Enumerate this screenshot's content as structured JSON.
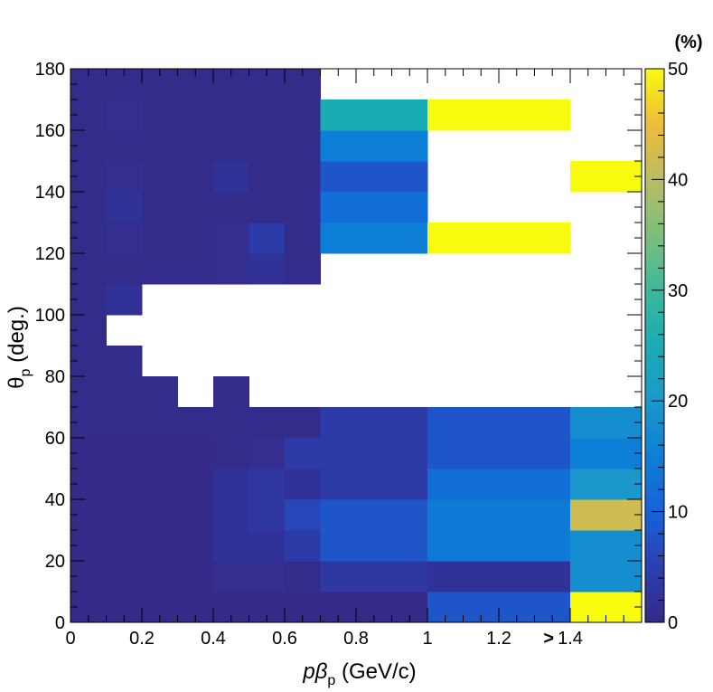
{
  "chart_data": {
    "type": "heatmap",
    "xlabel": {
      "main": "pβ",
      "sub": "p",
      "unit": " (GeV/c)"
    },
    "ylabel": {
      "main": "θ",
      "sub": "p",
      "unit": " (deg.)"
    },
    "zlabel": "(%)",
    "xlim": [
      0,
      1.6
    ],
    "ylim": [
      0,
      180
    ],
    "zlim": [
      0,
      50
    ],
    "x_ticks": [
      "0",
      "0.2",
      "0.4",
      "0.6",
      "0.8",
      "1",
      "1.2",
      "1.4"
    ],
    "x_overflow_marker": ">",
    "y_ticks": [
      "0",
      "20",
      "40",
      "60",
      "80",
      "100",
      "120",
      "140",
      "160",
      "180"
    ],
    "z_ticks": [
      "0",
      "10",
      "20",
      "30",
      "40",
      "50"
    ],
    "x_bin_edges": [
      0,
      0.1,
      0.2,
      0.3,
      0.4,
      0.5,
      0.6,
      0.7,
      1.0,
      1.4,
      1.6
    ],
    "y_bin_edges": [
      0,
      10,
      20,
      30,
      40,
      50,
      60,
      70,
      80,
      90,
      100,
      110,
      120,
      130,
      140,
      150,
      160,
      170,
      180
    ],
    "cells": [
      [
        0,
        0,
        0,
        0,
        0,
        0,
        0.5,
        0.5,
        0.5,
        0.5,
        0.5,
        0.5,
        0.5,
        0.5,
        0.5,
        0.5,
        0.5,
        0.5
      ],
      [
        0,
        0,
        0,
        0,
        0,
        0,
        0.5,
        0.5,
        0.5,
        null,
        2,
        0.5,
        1,
        2,
        1,
        0.5,
        1,
        0.5
      ],
      [
        0,
        0,
        0,
        0,
        0,
        0,
        0.5,
        0.5,
        null,
        null,
        null,
        0.5,
        0.5,
        0.5,
        0.5,
        0.5,
        0.5,
        0.5
      ],
      [
        0,
        0,
        0,
        0,
        0,
        0,
        0.5,
        null,
        null,
        null,
        null,
        0.5,
        0.5,
        0.5,
        0.5,
        0.5,
        0.5,
        0.5
      ],
      [
        0,
        1,
        2,
        2,
        2,
        0.5,
        0.5,
        0.5,
        null,
        null,
        null,
        1,
        1,
        0.5,
        2,
        0.5,
        0.5,
        0.5
      ],
      [
        0,
        1,
        2,
        3,
        3,
        1,
        0.5,
        null,
        null,
        null,
        null,
        2,
        4,
        0.5,
        0.5,
        0.5,
        0.5,
        0.5
      ],
      [
        0,
        0.5,
        4,
        6,
        2,
        4,
        0.5,
        null,
        null,
        null,
        null,
        0.5,
        0.5,
        0.5,
        0.5,
        0.5,
        0.5,
        0.5
      ],
      [
        0,
        3,
        8,
        8,
        4,
        4,
        4,
        null,
        null,
        null,
        null,
        null,
        15,
        12,
        8,
        15,
        25,
        null
      ],
      [
        8,
        2,
        14,
        14,
        12,
        8,
        8,
        null,
        null,
        null,
        null,
        null,
        50,
        null,
        null,
        null,
        50,
        null
      ],
      [
        50,
        18,
        18,
        42,
        20,
        15,
        18,
        null,
        null,
        null,
        null,
        null,
        null,
        null,
        50,
        null,
        null,
        null
      ]
    ]
  }
}
